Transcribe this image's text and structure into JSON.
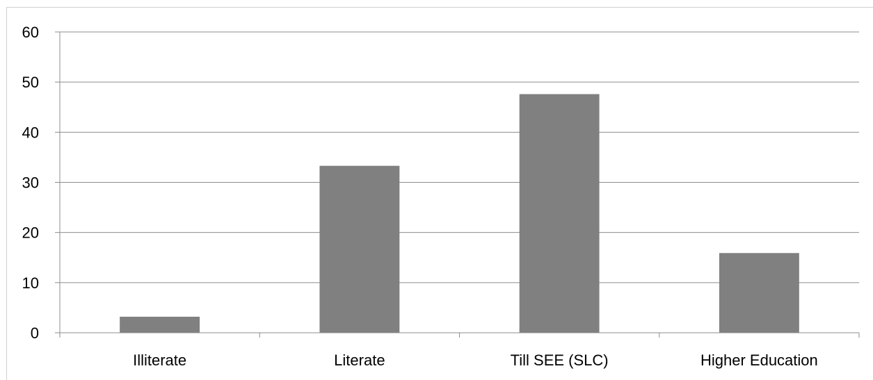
{
  "chart_data": {
    "type": "bar",
    "title": "",
    "xlabel": "",
    "ylabel": "",
    "categories": [
      "Illiterate",
      "Literate",
      "Till SEE (SLC)",
      "Higher Education"
    ],
    "values": [
      3.2,
      33.3,
      47.6,
      15.9
    ],
    "ylim": [
      0,
      60
    ],
    "yticks": [
      0,
      10,
      20,
      30,
      40,
      50,
      60
    ],
    "ytick_labels": [
      "0",
      "10",
      "20",
      "30",
      "40",
      "50",
      "60"
    ],
    "grid": "horizontal",
    "legend": "none",
    "bar_color": "#808080",
    "grid_color": "#8c8c8c"
  }
}
